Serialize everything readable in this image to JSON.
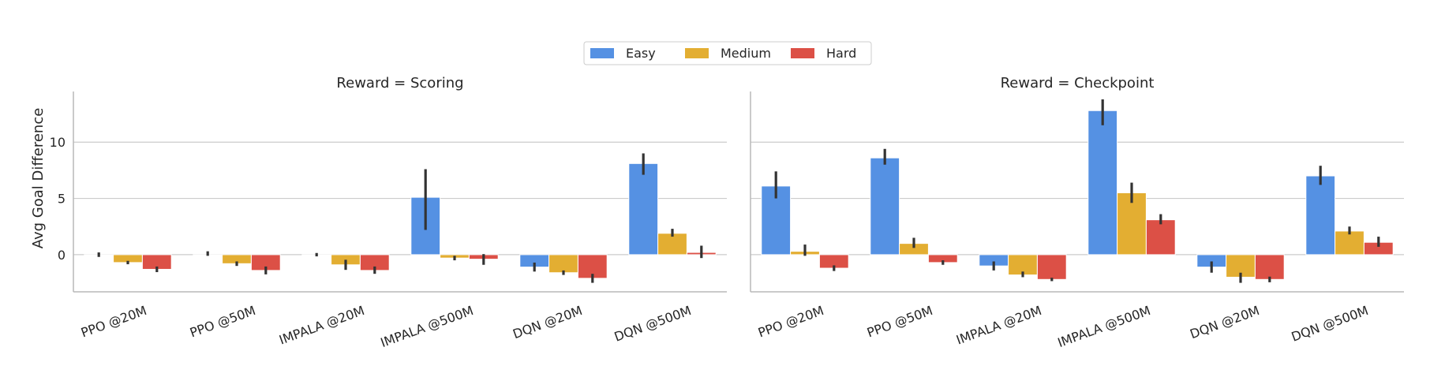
{
  "chart_data": {
    "type": "bar",
    "ylabel": "Avg Goal Difference",
    "yticks": [
      0,
      5,
      10
    ],
    "ylim": [
      -3.3,
      14.5
    ],
    "grid": "horizontal",
    "legend": {
      "placement": "top-center",
      "entries": [
        "Easy",
        "Medium",
        "Hard"
      ]
    },
    "colors": {
      "Easy": "#5591e3",
      "Medium": "#e3ae32",
      "Hard": "#dc5046",
      "errorbar": "#333333",
      "grid": "#cccccc",
      "axis": "#b8b8b8"
    },
    "panels": [
      {
        "title": "Reward = Scoring",
        "categories": [
          "PPO @20M",
          "PPO @50M",
          "IMPALA @20M",
          "IMPALA @500M",
          "DQN @20M",
          "DQN @500M"
        ],
        "series": [
          {
            "name": "Easy",
            "values": [
              0.0,
              0.0,
              0.0,
              5.1,
              -1.1,
              8.1
            ],
            "err_low": [
              -0.2,
              -0.1,
              -0.15,
              2.2,
              -1.5,
              7.1
            ],
            "err_high": [
              0.2,
              0.3,
              0.15,
              7.6,
              -0.7,
              9.0
            ]
          },
          {
            "name": "Medium",
            "values": [
              -0.7,
              -0.8,
              -0.9,
              -0.3,
              -1.6,
              1.9
            ],
            "err_low": [
              -0.85,
              -1.0,
              -1.35,
              -0.5,
              -1.8,
              1.6
            ],
            "err_high": [
              -0.55,
              -0.6,
              -0.45,
              -0.1,
              -1.4,
              2.3
            ]
          },
          {
            "name": "Hard",
            "values": [
              -1.3,
              -1.4,
              -1.4,
              -0.4,
              -2.1,
              0.2
            ],
            "err_low": [
              -1.55,
              -1.75,
              -1.7,
              -0.9,
              -2.5,
              -0.3
            ],
            "err_high": [
              -1.05,
              -1.05,
              -1.05,
              0.05,
              -1.7,
              0.8
            ]
          }
        ]
      },
      {
        "title": "Reward = Checkpoint",
        "categories": [
          "PPO @20M",
          "PPO @50M",
          "IMPALA @20M",
          "IMPALA @500M",
          "DQN @20M",
          "DQN @500M"
        ],
        "series": [
          {
            "name": "Easy",
            "values": [
              6.1,
              8.6,
              -1.0,
              12.8,
              -1.1,
              7.0
            ],
            "err_low": [
              5.0,
              8.0,
              -1.4,
              11.5,
              -1.6,
              6.2
            ],
            "err_high": [
              7.4,
              9.4,
              -0.6,
              13.8,
              -0.6,
              7.9
            ]
          },
          {
            "name": "Medium",
            "values": [
              0.3,
              1.0,
              -1.8,
              5.5,
              -2.0,
              2.1
            ],
            "err_low": [
              -0.1,
              0.6,
              -2.0,
              4.6,
              -2.5,
              1.8
            ],
            "err_high": [
              0.9,
              1.5,
              -1.5,
              6.4,
              -1.6,
              2.5
            ]
          },
          {
            "name": "Hard",
            "values": [
              -1.2,
              -0.7,
              -2.2,
              3.1,
              -2.2,
              1.1
            ],
            "err_low": [
              -1.45,
              -0.9,
              -2.35,
              2.7,
              -2.45,
              0.7
            ],
            "err_high": [
              -0.95,
              -0.5,
              -2.05,
              3.6,
              -1.95,
              1.6
            ]
          }
        ]
      }
    ]
  }
}
